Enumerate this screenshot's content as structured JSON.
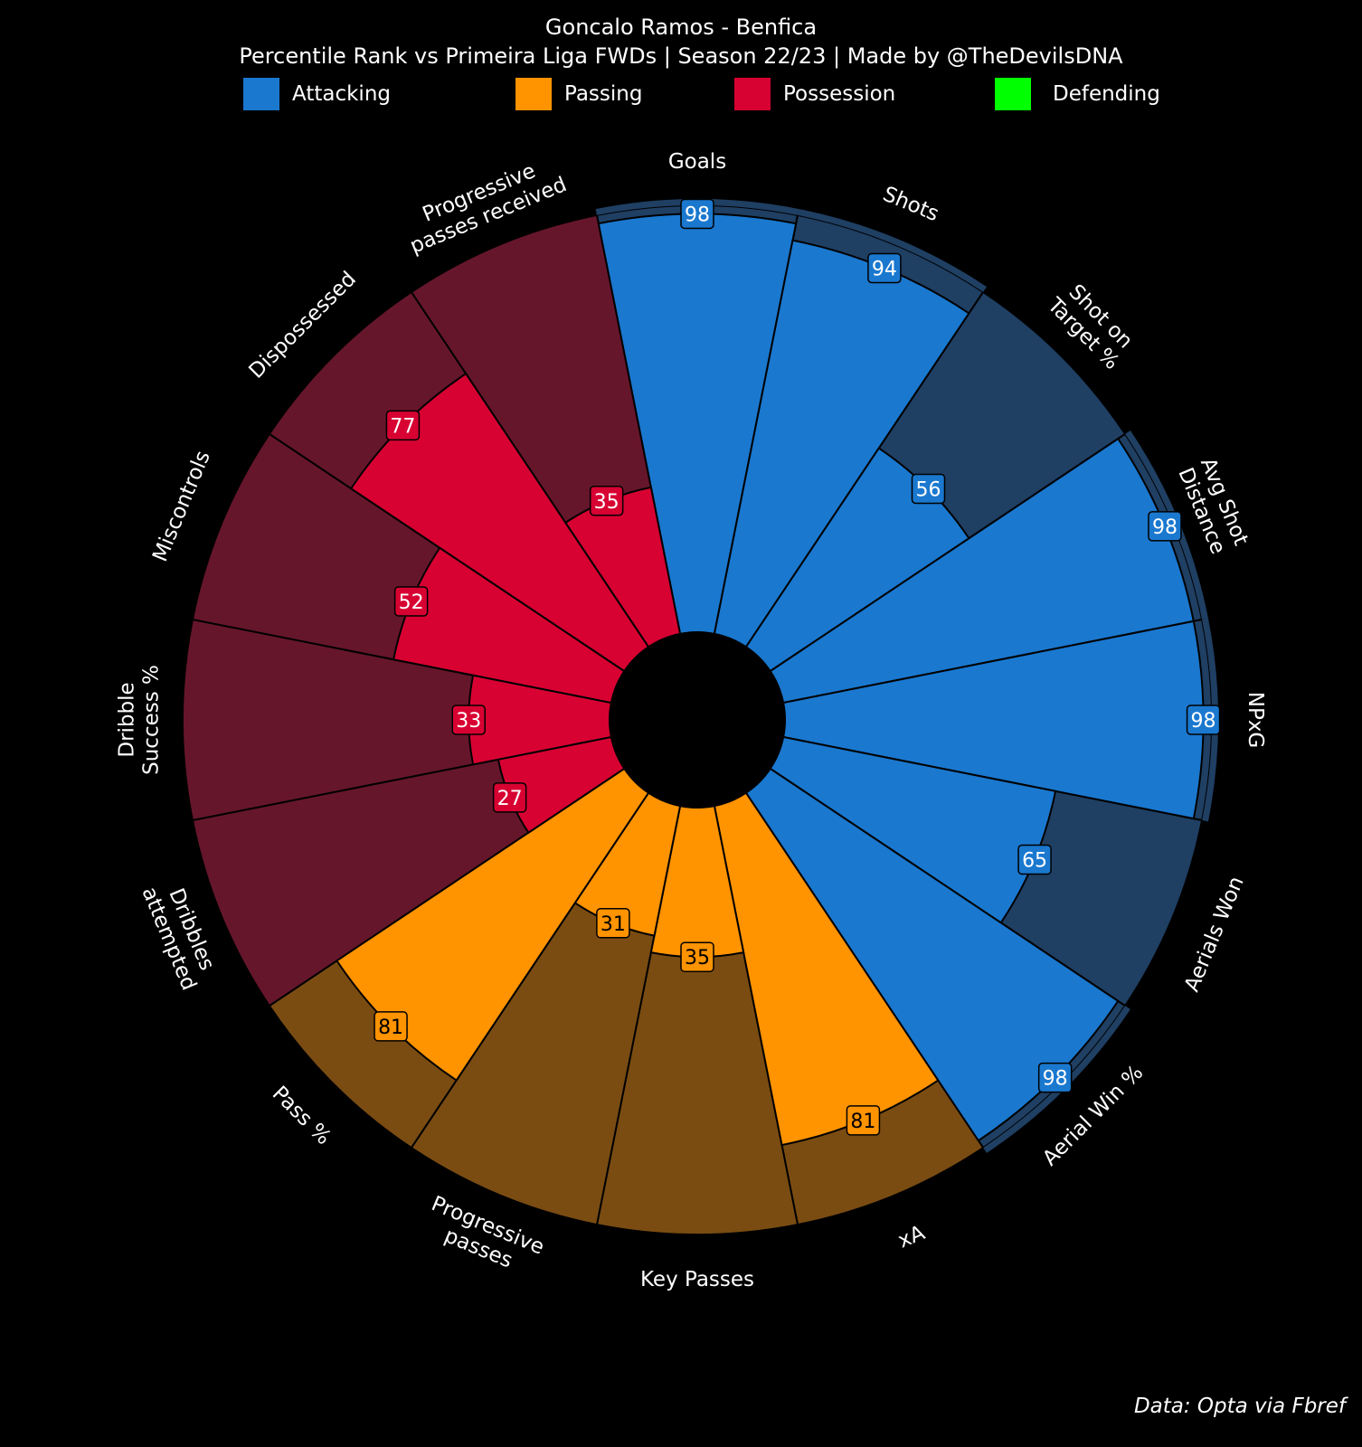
{
  "title": "Goncalo Ramos - Benfica",
  "subtitle": "Percentile Rank vs Primeira Liga FWDs | Season 22/23 | Made by @TheDevilsDNA",
  "footer": "Data: Opta via Fbref",
  "legend": [
    {
      "name": "Attacking",
      "color": "#1a78cf"
    },
    {
      "name": "Passing",
      "color": "#ff9300"
    },
    {
      "name": "Possession",
      "color": "#d70232"
    },
    {
      "name": "Defending",
      "color": "#00ff00"
    }
  ],
  "chart_data": {
    "type": "radial bar (pizza)",
    "title": "Goncalo Ramos - Benfica",
    "subtitle": "Percentile Rank vs Primeira Liga FWDs | Season 22/23 | Made by @TheDevilsDNA",
    "range": [
      0,
      100
    ],
    "categories": [
      {
        "label": "Goals",
        "value": 98,
        "group": "Attacking"
      },
      {
        "label": "Shots",
        "value": 94,
        "group": "Attacking"
      },
      {
        "label": "Shot on\nTarget %",
        "value": 56,
        "group": "Attacking"
      },
      {
        "label": "Avg Shot\nDistance",
        "value": 98,
        "group": "Attacking"
      },
      {
        "label": "NPxG",
        "value": 98,
        "group": "Attacking"
      },
      {
        "label": "Aerials Won",
        "value": 65,
        "group": "Attacking"
      },
      {
        "label": "Aerial Win %",
        "value": 98,
        "group": "Attacking"
      },
      {
        "label": "xA",
        "value": 81,
        "group": "Passing"
      },
      {
        "label": "Key Passes",
        "value": 35,
        "group": "Passing"
      },
      {
        "label": "Progressive\npasses",
        "value": 31,
        "group": "Passing"
      },
      {
        "label": "Pass %",
        "value": 81,
        "group": "Passing"
      },
      {
        "label": "Dribbles\nattempted",
        "value": 27,
        "group": "Possession"
      },
      {
        "label": "Dribble\nSuccess %",
        "value": 33,
        "group": "Possession"
      },
      {
        "label": "Miscontrols",
        "value": 52,
        "group": "Possession"
      },
      {
        "label": "Dispossessed",
        "value": 77,
        "group": "Possession"
      },
      {
        "label": "Progressive\npasses received",
        "value": 35,
        "group": "Possession"
      }
    ],
    "group_colors": {
      "Attacking": {
        "fill": "#1a78cf",
        "background": "#1f3f63"
      },
      "Passing": {
        "fill": "#ff9300",
        "background": "#7a4c12"
      },
      "Possession": {
        "fill": "#d70232",
        "background": "#66162b"
      },
      "Defending": {
        "fill": "#00ff00",
        "background": "#0b4d0b"
      }
    }
  }
}
